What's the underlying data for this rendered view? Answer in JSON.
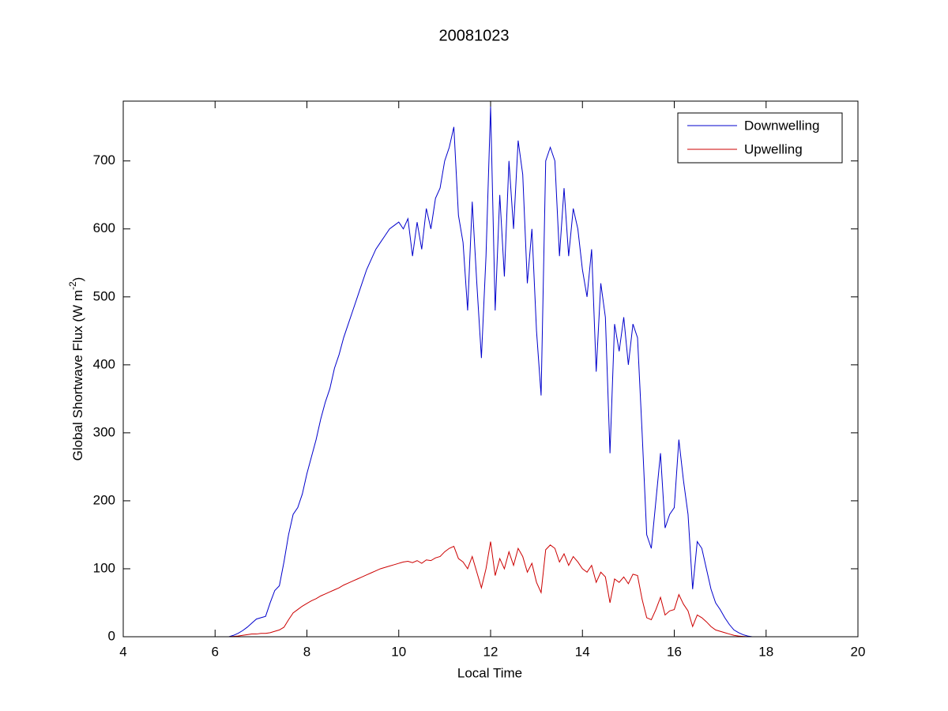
{
  "chart_data": {
    "type": "line",
    "title": "20081023",
    "xlabel": "Local Time",
    "ylabel": [
      "Global Shortwave Flux (W m",
      "-2",
      ")"
    ],
    "x": [
      6.3,
      6.4,
      6.5,
      6.6,
      6.7,
      6.8,
      6.9,
      7.0,
      7.1,
      7.2,
      7.3,
      7.4,
      7.5,
      7.6,
      7.7,
      7.8,
      7.9,
      8.0,
      8.1,
      8.2,
      8.3,
      8.4,
      8.5,
      8.6,
      8.7,
      8.8,
      8.9,
      9.0,
      9.1,
      9.2,
      9.3,
      9.4,
      9.5,
      9.6,
      9.7,
      9.8,
      9.9,
      10.0,
      10.1,
      10.2,
      10.3,
      10.4,
      10.5,
      10.6,
      10.7,
      10.8,
      10.9,
      11.0,
      11.1,
      11.2,
      11.3,
      11.4,
      11.5,
      11.6,
      11.7,
      11.8,
      11.9,
      12.0,
      12.1,
      12.2,
      12.3,
      12.4,
      12.5,
      12.6,
      12.7,
      12.8,
      12.9,
      13.0,
      13.1,
      13.2,
      13.3,
      13.4,
      13.5,
      13.6,
      13.7,
      13.8,
      13.9,
      14.0,
      14.1,
      14.2,
      14.3,
      14.4,
      14.5,
      14.6,
      14.7,
      14.8,
      14.9,
      15.0,
      15.1,
      15.2,
      15.3,
      15.4,
      15.5,
      15.6,
      15.7,
      15.8,
      15.9,
      16.0,
      16.1,
      16.2,
      16.3,
      16.4,
      16.5,
      16.6,
      16.7,
      16.8,
      16.9,
      17.0,
      17.1,
      17.2,
      17.3,
      17.4,
      17.5,
      17.6,
      17.7
    ],
    "series": [
      {
        "name": "Downwelling",
        "color": "#0000cc",
        "values": [
          0,
          2,
          5,
          9,
          14,
          20,
          26,
          28,
          30,
          50,
          68,
          75,
          110,
          150,
          180,
          190,
          210,
          240,
          265,
          290,
          320,
          345,
          365,
          395,
          415,
          440,
          460,
          480,
          500,
          520,
          540,
          555,
          570,
          580,
          590,
          600,
          605,
          610,
          600,
          615,
          560,
          610,
          570,
          630,
          600,
          645,
          660,
          700,
          720,
          750,
          620,
          580,
          480,
          640,
          520,
          410,
          560,
          780,
          480,
          650,
          530,
          700,
          600,
          730,
          680,
          520,
          600,
          450,
          355,
          700,
          720,
          700,
          560,
          660,
          560,
          630,
          600,
          540,
          500,
          570,
          390,
          520,
          470,
          270,
          460,
          420,
          470,
          400,
          460,
          440,
          300,
          150,
          130,
          200,
          270,
          160,
          180,
          190,
          290,
          230,
          180,
          70,
          140,
          130,
          100,
          70,
          50,
          40,
          28,
          18,
          10,
          6,
          3,
          1,
          0
        ]
      },
      {
        "name": "Upwelling",
        "color": "#cc0000",
        "values": [
          0,
          0.5,
          1,
          2,
          3,
          4,
          4,
          5,
          5,
          6,
          8,
          10,
          14,
          25,
          35,
          40,
          45,
          49,
          53,
          56,
          60,
          63,
          66,
          69,
          72,
          76,
          79,
          82,
          85,
          88,
          91,
          94,
          97,
          100,
          102,
          104,
          106,
          108,
          110,
          111,
          109,
          112,
          108,
          113,
          112,
          116,
          118,
          125,
          130,
          133,
          115,
          110,
          100,
          118,
          95,
          72,
          100,
          140,
          90,
          115,
          100,
          125,
          105,
          130,
          118,
          95,
          108,
          80,
          65,
          128,
          135,
          130,
          110,
          122,
          105,
          118,
          110,
          100,
          95,
          105,
          80,
          95,
          88,
          50,
          85,
          80,
          88,
          78,
          92,
          90,
          55,
          28,
          25,
          40,
          58,
          32,
          38,
          40,
          62,
          48,
          38,
          15,
          32,
          28,
          22,
          15,
          10,
          8,
          6,
          4,
          2,
          1,
          0.5,
          0,
          0
        ]
      }
    ],
    "xlim": [
      4,
      20
    ],
    "xticks": [
      4,
      6,
      8,
      10,
      12,
      14,
      16,
      18,
      20
    ],
    "ylim": [
      0,
      788
    ],
    "yticks": [
      0,
      100,
      200,
      300,
      400,
      500,
      600,
      700
    ],
    "legend": "upper right"
  }
}
